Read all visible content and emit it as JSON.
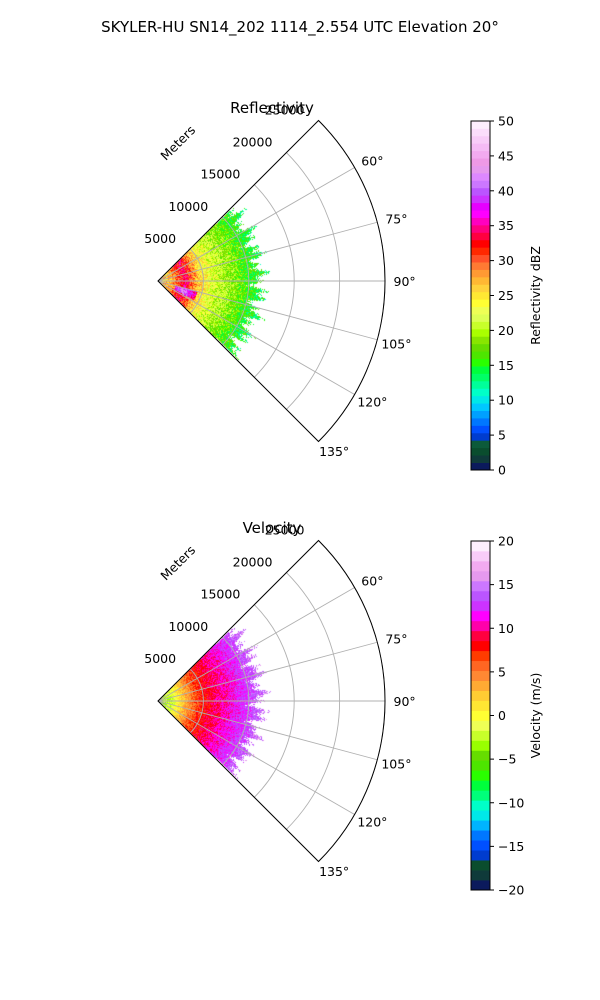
{
  "figure": {
    "suptitle": "SKYLER-HU  SN14_202  1114_2.554 UTC Elevation 20°"
  },
  "chart_data": [
    {
      "type": "heatmap",
      "subtype": "polar-sector",
      "title": "Reflectivity",
      "rlabel": "Meters",
      "r_ticks": [
        5000,
        10000,
        15000,
        20000,
        25000
      ],
      "r_tick_labels": [
        "5000",
        "10000",
        "15000",
        "20000",
        "25000"
      ],
      "r_max": 25000,
      "theta_range_deg": [
        45,
        135
      ],
      "theta_ticks_deg": [
        60,
        75,
        90,
        105,
        120,
        135
      ],
      "theta_tick_labels": [
        "60°",
        "75°",
        "90°",
        "105°",
        "120°",
        "135°"
      ],
      "grid": true,
      "data_extent_m": 12000,
      "colorbar": {
        "label": "Reflectivity dBZ",
        "min": 0,
        "max": 50,
        "ticks": [
          0,
          5,
          10,
          15,
          20,
          25,
          30,
          35,
          40,
          45,
          50
        ],
        "tick_labels": [
          "0",
          "5",
          "10",
          "15",
          "20",
          "25",
          "30",
          "35",
          "40",
          "45",
          "50"
        ],
        "colors": [
          "#0b1a5c",
          "#0f3a3a",
          "#0a4d2e",
          "#0c5a3a",
          "#003ccf",
          "#0050ff",
          "#0077ff",
          "#00a0ff",
          "#00c8ff",
          "#00e8e8",
          "#00ffc8",
          "#00ff9a",
          "#00ff66",
          "#00ff3c",
          "#2aff00",
          "#4de600",
          "#66dd00",
          "#88e600",
          "#aaff00",
          "#c8ff2a",
          "#ddff55",
          "#eeff55",
          "#ffff33",
          "#ffe833",
          "#ffd23c",
          "#ffb833",
          "#ff9a33",
          "#ff7a33",
          "#ff5028",
          "#ff2800",
          "#ff0000",
          "#ff0040",
          "#ff0080",
          "#ff00c0",
          "#ff00ff",
          "#e600ff",
          "#cc33ff",
          "#bb55ff",
          "#cc77ff",
          "#dd88ff",
          "#e699ee",
          "#ee99e6",
          "#f2aaf0",
          "#f5bbf5",
          "#f8ccf8",
          "#fbddfb",
          "#fdeefd"
        ]
      },
      "profile_by_range_m": [
        {
          "r": 0,
          "value": 26
        },
        {
          "r": 1500,
          "value": 27
        },
        {
          "r": 3000,
          "value": 34
        },
        {
          "r": 4500,
          "value": 26
        },
        {
          "r": 6000,
          "value": 22
        },
        {
          "r": 8000,
          "value": 19
        },
        {
          "r": 10000,
          "value": 16
        },
        {
          "r": 12000,
          "value": 14
        }
      ]
    },
    {
      "type": "heatmap",
      "subtype": "polar-sector",
      "title": "Velocity",
      "rlabel": "Meters",
      "r_ticks": [
        5000,
        10000,
        15000,
        20000,
        25000
      ],
      "r_tick_labels": [
        "5000",
        "10000",
        "15000",
        "20000",
        "25000"
      ],
      "r_max": 25000,
      "theta_range_deg": [
        45,
        135
      ],
      "theta_ticks_deg": [
        60,
        75,
        90,
        105,
        120,
        135
      ],
      "theta_tick_labels": [
        "60°",
        "75°",
        "90°",
        "105°",
        "120°",
        "135°"
      ],
      "grid": true,
      "data_extent_m": 12000,
      "colorbar": {
        "label": "Velocity (m/s)",
        "min": -20,
        "max": 20,
        "ticks": [
          -20,
          -15,
          -10,
          -5,
          0,
          5,
          10,
          15,
          20
        ],
        "tick_labels": [
          "−20",
          "−15",
          "−10",
          "−5",
          "0",
          "5",
          "10",
          "15",
          "20"
        ],
        "colors": [
          "#0b1a5c",
          "#0f3a3a",
          "#0a4d2e",
          "#003ccf",
          "#0050ff",
          "#0077ff",
          "#00b4ff",
          "#00e8e8",
          "#00ffc8",
          "#00ff7a",
          "#00ff3c",
          "#2aff00",
          "#4de600",
          "#66dd00",
          "#99ff00",
          "#c8ff2a",
          "#eeff55",
          "#ffff33",
          "#ffe633",
          "#ffcc33",
          "#ffaa33",
          "#ff8833",
          "#ff6622",
          "#ff3c00",
          "#ff0000",
          "#ff0040",
          "#ff00aa",
          "#ff00ff",
          "#cc33ff",
          "#bb55ff",
          "#cc77ff",
          "#e699ee",
          "#f2aaf0",
          "#f8ccf8",
          "#fdeefd"
        ]
      },
      "profile_by_range_m": [
        {
          "r": 0,
          "value": -3
        },
        {
          "r": 1500,
          "value": -2
        },
        {
          "r": 3000,
          "value": 3
        },
        {
          "r": 4500,
          "value": 7
        },
        {
          "r": 6000,
          "value": 9
        },
        {
          "r": 8000,
          "value": 11
        },
        {
          "r": 10000,
          "value": 13
        },
        {
          "r": 12000,
          "value": 15
        }
      ]
    }
  ]
}
